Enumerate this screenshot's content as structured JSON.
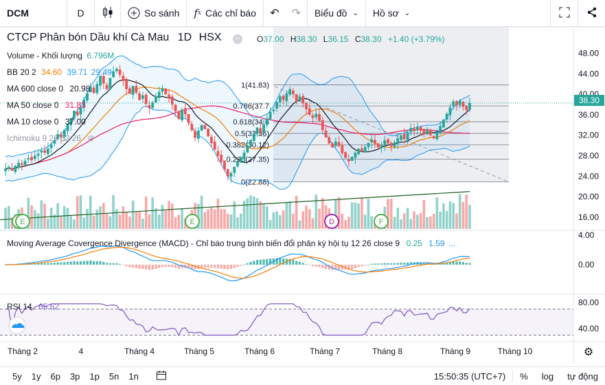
{
  "toolbar": {
    "symbol": "DCM",
    "interval": "D",
    "compare_label": "So sánh",
    "indicators_label": "Các chỉ báo",
    "chart_type_label": "Biểu đồ",
    "profile_label": "Hồ sơ"
  },
  "header": {
    "title": "CTCP Phân bón Dầu khí Cà Mau",
    "resolution": "1D",
    "exchange": "HSX",
    "open_label": "O",
    "open": "37.00",
    "high_label": "H",
    "high": "38.30",
    "low_label": "L",
    "low": "36.15",
    "close_label": "C",
    "close": "38.30",
    "change": "+1.40 (+3.79%)"
  },
  "legend": {
    "volume_label": "Volume - Khối lượng",
    "volume_value": "6.796M",
    "bb_label": "BB 20 2",
    "bb_mid": "34.60",
    "bb_up": "39.71",
    "bb_low": "29.49",
    "ma600_label": "MA 600 close 0",
    "ma600_value": "20.98",
    "ma50_label": "MA 50 close 0",
    "ma50_value": "31.83",
    "ma10_label": "MA 10 close 0",
    "ma10_value": "37.00",
    "ichimoku_label": "Ichimoku 9 26 52 26",
    "macd_label": "Moving Average Covergence Divergence (MACD) - Chỉ báo trung bình biến đổi phân kỳ hội tụ 12 26 close 9",
    "macd_v1": "0.25",
    "macd_v2": "1.59",
    "macd_more": "...",
    "rsi_label": "RSI 14",
    "rsi_value": "65.62"
  },
  "fib": [
    {
      "label": "1(41.83)"
    },
    {
      "label": "0.786(37.7"
    },
    {
      "label": "0.618(34.6"
    },
    {
      "label": "0.5(32.36)"
    },
    {
      "label": "0.382(30.12)"
    },
    {
      "label": "0.236(27.35)"
    },
    {
      "label": "0(22.88)"
    }
  ],
  "price_axis": [
    "48.00",
    "44.00",
    "40.00",
    "36.00",
    "32.00",
    "28.00",
    "24.00",
    "20.00",
    "16.00"
  ],
  "last_price": "38.30",
  "macd_axis": [
    "4.00",
    "0.00"
  ],
  "rsi_axis": [
    "80.00",
    "40.00"
  ],
  "time_axis": [
    "Tháng 2",
    "4",
    "Tháng 4",
    "Tháng 5",
    "Tháng 6",
    "Tháng 7",
    "Tháng 8",
    "Tháng 9",
    "Tháng 10"
  ],
  "event_markers": [
    "F",
    "E",
    "D",
    "F",
    "E"
  ],
  "bottom": {
    "ranges": [
      "5y",
      "1y",
      "6p",
      "3p",
      "1p",
      "5n",
      "1n"
    ],
    "time": "15:50:35 (UTC+7)",
    "percent": "%",
    "log": "log",
    "auto": "tự động"
  },
  "colors": {
    "up": "#26a69a",
    "down": "#ef5350",
    "bb": "#2196f3",
    "ma50": "#e91e63",
    "ma10": "#131722",
    "orange": "#f57c00"
  },
  "chart_data": {
    "type": "candlestick",
    "closes": [
      25.4,
      25.8,
      25.1,
      26.0,
      26.6,
      26.2,
      27.0,
      27.5,
      27.1,
      28.0,
      28.4,
      29.0,
      28.6,
      29.4,
      30.2,
      31.0,
      32.2,
      31.6,
      33.0,
      34.1,
      35.3,
      36.8,
      35.9,
      37.4,
      39.0,
      40.2,
      41.5,
      40.3,
      42.0,
      43.6,
      42.1,
      41.0,
      43.2,
      44.5,
      45.0,
      43.8,
      42.6,
      41.0,
      40.1,
      41.6,
      40.3,
      38.9,
      39.8,
      38.1,
      37.3,
      38.4,
      39.6,
      40.5,
      41.2,
      40.0,
      39.3,
      38.0,
      36.7,
      35.2,
      37.0,
      36.1,
      34.4,
      33.0,
      31.5,
      32.9,
      34.0,
      33.2,
      31.8,
      30.5,
      29.2,
      28.0,
      26.8,
      25.3,
      24.0,
      24.6,
      25.8,
      26.9,
      27.5,
      28.6,
      30.0,
      31.1,
      32.3,
      33.5,
      32.4,
      34.1,
      35.3,
      36.6,
      37.0,
      38.5,
      39.6,
      38.9,
      40.2,
      41.0,
      40.1,
      38.6,
      39.5,
      38.2,
      37.1,
      36.0,
      35.4,
      36.2,
      34.8,
      33.0,
      31.6,
      30.4,
      29.6,
      30.8,
      29.9,
      28.5,
      27.6,
      26.9,
      27.8,
      28.6,
      29.4,
      28.8,
      29.7,
      30.5,
      31.2,
      30.3,
      29.6,
      30.1,
      31.0,
      30.4,
      29.8,
      30.6,
      31.4,
      32.0,
      31.3,
      32.6,
      33.4,
      32.8,
      33.6,
      32.9,
      32.2,
      33.1,
      32.0,
      31.4,
      32.6,
      33.8,
      35.0,
      36.2,
      37.4,
      38.6,
      37.9,
      38.8,
      37.6,
      36.9,
      38.3
    ],
    "price_range": [
      14.5,
      50.5
    ]
  }
}
